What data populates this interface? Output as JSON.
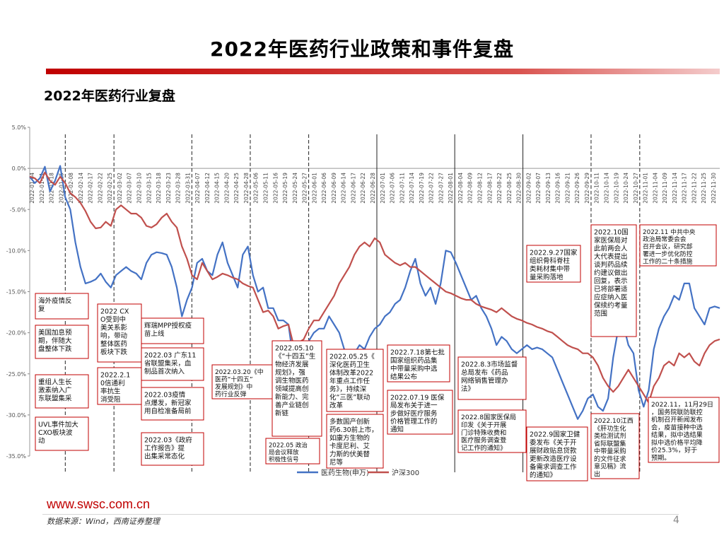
{
  "header": {
    "title": "2022年医药行业政策和事件复盘"
  },
  "section": {
    "subtitle": "2022年医药行业复盘"
  },
  "footer": {
    "url": "www.swsc.com.cn",
    "source": "数据来源：Wind，西南证券整理",
    "page": "4"
  },
  "colors": {
    "accent": "#c00000",
    "pharma": "#4472c4",
    "hs300": "#c0504d"
  },
  "chart_data": {
    "type": "line",
    "title": "2022年医药行业复盘",
    "ylim": [
      -35,
      5
    ],
    "yticks": [
      5,
      0,
      -5,
      -10,
      -15,
      -20,
      -25,
      -30,
      -35
    ],
    "ytick_labels": [
      "5.0%",
      "0.0%",
      "-5.0%",
      "-10.0%",
      "-15.0%",
      "-20.0%",
      "-25.0%",
      "-30.0%",
      "-35.0%"
    ],
    "x_tick_labels": [
      "2022-01-04",
      "2022-01-11",
      "2022-01-18",
      "2022-01-25",
      "2022-02-08",
      "2022-02-14",
      "2022-02-17",
      "2022-02-22",
      "2022-02-25",
      "2022-03-02",
      "2022-03-07",
      "2022-03-10",
      "2022-03-15",
      "2022-03-18",
      "2022-03-23",
      "2022-03-28",
      "2022-03-31",
      "2022-04-07",
      "2022-04-12",
      "2022-04-15",
      "2022-04-20",
      "2022-04-25",
      "2022-04-28",
      "2022-05-06",
      "2022-05-11",
      "2022-05-16",
      "2022-05-19",
      "2022-05-24",
      "2022-05-27",
      "2022-06-01",
      "2022-06-06",
      "2022-06-09",
      "2022-06-14",
      "2022-06-17",
      "2022-06-22",
      "2022-06-28",
      "2022-07-01",
      "2022-07-06",
      "2022-07-11",
      "2022-07-14",
      "2022-07-19",
      "2022-07-22",
      "2022-07-27",
      "2022-08-01",
      "2022-08-04",
      "2022-08-09",
      "2022-08-12",
      "2022-08-17",
      "2022-08-22",
      "2022-08-25",
      "2022-08-30",
      "2022-09-02",
      "2022-09-07",
      "2022-09-13",
      "2022-09-16",
      "2022-09-21",
      "2022-09-26",
      "2022-09-29",
      "2022-10-11",
      "2022-10-14",
      "2022-10-19",
      "2022-10-24",
      "2022-10-27",
      "2022-11-01",
      "2022-11-04",
      "2022-11-09",
      "2022-11-14",
      "2022-11-17",
      "2022-11-22",
      "2022-11-25",
      "2022-11-30"
    ],
    "legend": {
      "position": "bottom",
      "entries": [
        "医药生物(申万)",
        "沪深300"
      ]
    },
    "series": [
      {
        "name": "医药生物(申万)",
        "values": [
          -1,
          -1.8,
          -1.2,
          0.2,
          -2.8,
          -1.5,
          0.3,
          -3.5,
          -5,
          -9,
          -12,
          -14,
          -13.8,
          -13.5,
          -12.8,
          -13.8,
          -14.5,
          -13,
          -12.5,
          -12,
          -12.5,
          -12.8,
          -13.5,
          -11.5,
          -10.5,
          -10.2,
          -10.3,
          -10.5,
          -12,
          -14.5,
          -18,
          -16,
          -14.5,
          -11.5,
          -11,
          -12.5,
          -13,
          -10.5,
          -9,
          -11.5,
          -13,
          -14.5,
          -10.5,
          -9.5,
          -13,
          -15,
          -14.5,
          -17,
          -17,
          -18.5,
          -18.5,
          -19,
          -23.5,
          -25.5,
          -22,
          -21,
          -20,
          -19.5,
          -19.5,
          -18,
          -19,
          -20,
          -22,
          -23,
          -22.5,
          -21.5,
          -22,
          -20.5,
          -19.5,
          -19,
          -18,
          -17.5,
          -16.5,
          -16,
          -14.5,
          -12.5,
          -11,
          -14,
          -15.5,
          -14.5,
          -16.5,
          -14,
          -10,
          -10.2,
          -11.5,
          -13,
          -14.5,
          -16,
          -15.5,
          -17,
          -18,
          -19.5,
          -21.5,
          -20.5,
          -21,
          -22,
          -22.5,
          -22,
          -21.5,
          -22,
          -21.8,
          -22,
          -22.5,
          -23,
          -24.5,
          -26,
          -27.5,
          -29,
          -30.5,
          -29.5,
          -28,
          -27.5,
          -29,
          -29.5,
          -28,
          -23,
          -19.5,
          -19,
          -21.5,
          -22.5,
          -27,
          -29,
          -27,
          -22,
          -19.5,
          -18,
          -17,
          -15.5,
          -16,
          -14,
          -14,
          -17,
          -18,
          -19,
          -17,
          -16.8,
          -17
        ]
      },
      {
        "name": "沪深300",
        "values": [
          -1,
          -1.2,
          -1.8,
          -0.5,
          -1.5,
          -2,
          -1,
          -1.8,
          -3,
          -3.5,
          -4.2,
          -5.2,
          -6.5,
          -7.3,
          -7.2,
          -6.5,
          -7,
          -5,
          -4.5,
          -5,
          -5.5,
          -5.5,
          -6,
          -7,
          -7.2,
          -6.8,
          -6,
          -5.5,
          -6.5,
          -7.2,
          -9.5,
          -11,
          -13,
          -13.5,
          -11.5,
          -12.5,
          -13.5,
          -13.2,
          -12.8,
          -13,
          -13.3,
          -13.5,
          -14,
          -14.3,
          -14.5,
          -16,
          -17.5,
          -17.3,
          -18,
          -19.5,
          -19.2,
          -19,
          -21.5,
          -21.2,
          -20.8,
          -19.5,
          -18.5,
          -18.5,
          -17.5,
          -16.5,
          -15.5,
          -14,
          -13,
          -12,
          -10.5,
          -9.5,
          -9,
          -9.5,
          -8.5,
          -9,
          -10.5,
          -11,
          -11.5,
          -11.8,
          -11.5,
          -12,
          -12,
          -12.5,
          -13,
          -13.5,
          -14,
          -14.5,
          -15,
          -15.2,
          -15.5,
          -15.8,
          -16,
          -16,
          -16.5,
          -16.8,
          -17,
          -17.2,
          -17.5,
          -17,
          -17.5,
          -18,
          -18.3,
          -18.5,
          -18.8,
          -19,
          -19.3,
          -19.5,
          -19.8,
          -20,
          -20.5,
          -21,
          -21.5,
          -21.8,
          -22,
          -22.5,
          -22.5,
          -23,
          -24,
          -25.5,
          -26.5,
          -27.2,
          -26.5,
          -25.5,
          -24.5,
          -25.5,
          -26.5,
          -27.5,
          -28.5,
          -26.5,
          -25.5,
          -24,
          -23.5,
          -24,
          -22.5,
          -23,
          -22.5,
          -23.5,
          -24,
          -22.5,
          -21.5,
          -21,
          -20.8
        ]
      }
    ],
    "event_lines": [
      {
        "label": "2022-01-25",
        "style": "dashed"
      },
      {
        "label": "2022-02-25",
        "style": "dashed"
      },
      {
        "label": "2022-03-31",
        "style": "dashed"
      },
      {
        "label": "2022-04-28",
        "style": "dashed"
      },
      {
        "label": "2022-05-27",
        "style": "dashed"
      },
      {
        "label": "2022-06-28",
        "style": "solid"
      },
      {
        "label": "2022-08-01",
        "style": "solid"
      },
      {
        "label": "2022-08-30",
        "style": "solid"
      },
      {
        "label": "2022-09-29",
        "style": "dashed"
      },
      {
        "label": "2022-10-27",
        "style": "dashed"
      }
    ],
    "annotations": [
      {
        "id": "overseas",
        "lines": [
          "海外疫情反",
          "复"
        ]
      },
      {
        "id": "fed",
        "lines": [
          "美国加息预",
          "期，伴随大",
          "盘整体下跌"
        ]
      },
      {
        "id": "gd-vbp",
        "lines": [
          "重组人生长",
          "激素纳入广",
          "东联盟集采"
        ]
      },
      {
        "id": "uvl",
        "lines": [
          "UVL事件加大",
          "CXO板块波",
          "动"
        ]
      },
      {
        "id": "cxo",
        "lines": [
          "2022 CX",
          "O受到中",
          "美关系影",
          "响，带动",
          "整体医药",
          "板块下跌"
        ]
      },
      {
        "id": "q2021",
        "lines": [
          "2022.2.1",
          "0信通利",
          "率抗生",
          "消受阻"
        ]
      },
      {
        "id": "mpp",
        "lines": [
          "辉瑞MPP授权疫",
          "苗上线"
        ]
      },
      {
        "id": "gd11",
        "lines": [
          "2022.03 广东11",
          "省联盟集采，血",
          "制品首次纳入"
        ]
      },
      {
        "id": "inject",
        "lines": [
          "2022.03疫情",
          "点爆发，新冠家",
          "用自检准备局前"
        ]
      },
      {
        "id": "gov-report",
        "lines": [
          "2022.03《政府",
          "工作报告》提",
          "出集采常态化"
        ]
      },
      {
        "id": "plan14",
        "lines": [
          "2022.03.20《中",
          "医药“十四五”",
          "发展规划》中",
          "药行业反弹"
        ]
      },
      {
        "id": "bio14",
        "lines": [
          "2022.05.10",
          "《“十四五”生",
          "物经济发展",
          "规划》，强",
          "调生物医药",
          "领域提高创",
          "新能力、完",
          "善产业链创",
          "新链"
        ]
      },
      {
        "id": "state-office",
        "lines": [
          "2022.05 政治",
          "局会议释放",
          "积极性信号"
        ]
      },
      {
        "id": "reform",
        "lines": [
          "2022.05.25《",
          "深化医药卫生",
          "体制改革2022",
          "年重点工作任",
          "务》，持续深",
          "化“三医”联动",
          "改革"
        ]
      },
      {
        "id": "innovate",
        "lines": [
          "多数国产创新",
          "药6.30前上市，",
          "如康方生物的",
          "卡度尼利、艾",
          "力斯的伏美替",
          "尼等"
        ]
      },
      {
        "id": "vbp7",
        "lines": [
          "2022.7.18第七批",
          "国家组织药品集",
          "中带量采购中选",
          "结果公布"
        ]
      },
      {
        "id": "medservice",
        "lines": [
          "2022.07.19 医保",
          "局发布关于进一",
          "步做好医疗服务",
          "价格管理工作的",
          "通知"
        ]
      },
      {
        "id": "samr",
        "lines": [
          "2022.8.3市场监督",
          "总局发布《药品",
          "网络销售管理办",
          "法》"
        ]
      },
      {
        "id": "fee",
        "lines": [
          "2022.8国家医保局",
          "印发《关于开展",
          "门诊特殊收费和",
          "医疗服务调查登",
          "记工作的通知》"
        ]
      },
      {
        "id": "ortho",
        "lines": [
          "2022.9.27国家",
          "组织骨科脊柱",
          "类耗材集中带",
          "量采购落地"
        ]
      },
      {
        "id": "discount",
        "lines": [
          "2022.9国家卫健",
          "委发布《关于开",
          "展财政贴息贷款",
          "更新改造医疗设",
          "备需求调查工作",
          "的通知》"
        ]
      },
      {
        "id": "npc",
        "lines": [
          "2022.10国",
          "家医保局对",
          "此前两会人",
          "大代表提出",
          "谈判药品续",
          "约建议做出",
          "回复，表示",
          "已将部署适",
          "应症纳入医",
          "保续约考量",
          "范围"
        ]
      },
      {
        "id": "jiangxi",
        "lines": [
          "2022.10江西",
          "《肝功生化",
          "类检测试剂",
          "省际联盟集",
          "中带量采购",
          "的文件征求",
          "意见稿》流",
          "出"
        ]
      },
      {
        "id": "epidemic20",
        "lines": [
          "2022.11  中共中央",
          "政治局常委会会",
          "召开会议，研究部",
          "署进一步优化防控",
          "工作的二十条措施"
        ]
      },
      {
        "id": "gov-office",
        "lines": [
          "2022.11，11月29日",
          "，国务院联防联控",
          "机制召开新闻发布",
          "会，疫苗接种中选",
          "结果，拟中选结果",
          "拟中选价格平均降",
          "价25.3%，好于",
          "预期。"
        ]
      }
    ]
  }
}
